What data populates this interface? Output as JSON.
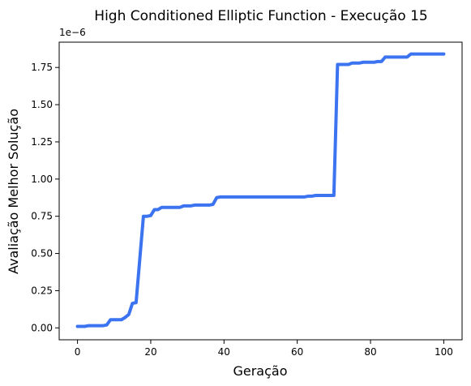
{
  "chart_data": {
    "type": "line",
    "title": "High Conditioned Elliptic Function - Execução 15",
    "xlabel": "Geração",
    "ylabel": "Avaliação Melhor Solução",
    "y_offset_label": "1e−6",
    "xlim": [
      -5,
      105
    ],
    "ylim": [
      -0.08,
      1.92
    ],
    "xticks": [
      0,
      20,
      40,
      60,
      80,
      100
    ],
    "yticks": [
      0.0,
      0.25,
      0.5,
      0.75,
      1.0,
      1.25,
      1.5,
      1.75
    ],
    "xtick_labels": [
      "0",
      "20",
      "40",
      "60",
      "80",
      "100"
    ],
    "ytick_labels": [
      "0.00",
      "0.25",
      "0.50",
      "0.75",
      "1.00",
      "1.25",
      "1.50",
      "1.75"
    ],
    "grid": false,
    "series": [
      {
        "color": "#3b73f0",
        "x": [
          0,
          1,
          2,
          3,
          4,
          5,
          6,
          7,
          8,
          9,
          10,
          11,
          12,
          13,
          14,
          15,
          16,
          17,
          18,
          19,
          20,
          21,
          22,
          23,
          24,
          25,
          26,
          27,
          28,
          29,
          30,
          31,
          32,
          33,
          34,
          35,
          36,
          37,
          38,
          39,
          40,
          41,
          42,
          43,
          44,
          45,
          46,
          47,
          48,
          49,
          50,
          51,
          52,
          53,
          54,
          55,
          56,
          57,
          58,
          59,
          60,
          61,
          62,
          63,
          64,
          65,
          66,
          67,
          68,
          69,
          70,
          71,
          72,
          73,
          74,
          75,
          76,
          77,
          78,
          79,
          80,
          81,
          82,
          83,
          84,
          85,
          86,
          87,
          88,
          89,
          90,
          91,
          92,
          93,
          94,
          95,
          96,
          97,
          98,
          99,
          100
        ],
        "y": [
          0.01,
          0.01,
          0.01,
          0.015,
          0.015,
          0.015,
          0.015,
          0.015,
          0.02,
          0.055,
          0.055,
          0.055,
          0.055,
          0.07,
          0.09,
          0.165,
          0.17,
          0.46,
          0.75,
          0.75,
          0.755,
          0.795,
          0.795,
          0.81,
          0.81,
          0.81,
          0.81,
          0.81,
          0.81,
          0.82,
          0.82,
          0.82,
          0.825,
          0.825,
          0.825,
          0.825,
          0.825,
          0.83,
          0.875,
          0.88,
          0.88,
          0.88,
          0.88,
          0.88,
          0.88,
          0.88,
          0.88,
          0.88,
          0.88,
          0.88,
          0.88,
          0.88,
          0.88,
          0.88,
          0.88,
          0.88,
          0.88,
          0.88,
          0.88,
          0.88,
          0.88,
          0.88,
          0.88,
          0.885,
          0.885,
          0.89,
          0.89,
          0.89,
          0.89,
          0.89,
          0.89,
          1.77,
          1.77,
          1.77,
          1.77,
          1.78,
          1.78,
          1.78,
          1.785,
          1.785,
          1.785,
          1.785,
          1.79,
          1.79,
          1.82,
          1.82,
          1.82,
          1.82,
          1.82,
          1.82,
          1.82,
          1.84,
          1.84,
          1.84,
          1.84,
          1.84,
          1.84,
          1.84,
          1.84,
          1.84,
          1.84
        ]
      }
    ]
  }
}
